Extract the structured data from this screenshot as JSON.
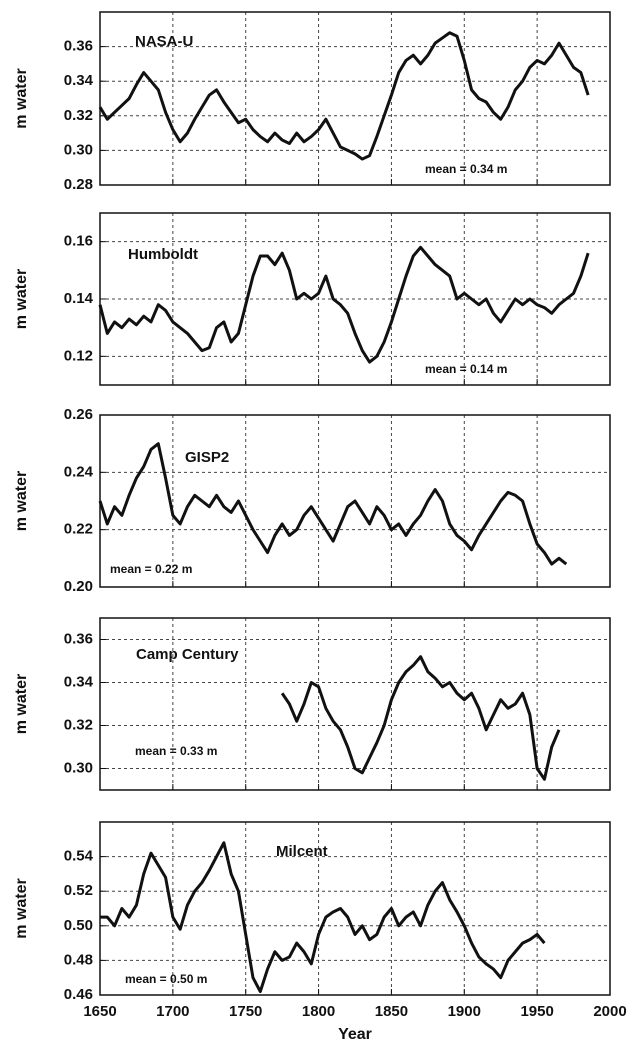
{
  "chart_data": [
    {
      "type": "line",
      "y_label": "m water",
      "annotation": "mean = 0.34 m",
      "grid": true,
      "xlim": [
        1650,
        2000
      ],
      "xticks": [
        1650,
        1700,
        1750,
        1800,
        1850,
        1900,
        1950,
        2000
      ],
      "ylim": [
        0.28,
        0.38
      ],
      "yticks": [
        0.28,
        {
          "value": 0.3,
          "label": "0.30"
        },
        0.32,
        0.34,
        0.36
      ],
      "x": [
        1650,
        1655,
        1660,
        1665,
        1670,
        1675,
        1680,
        1685,
        1690,
        1695,
        1700,
        1705,
        1710,
        1715,
        1720,
        1725,
        1730,
        1735,
        1740,
        1745,
        1750,
        1755,
        1760,
        1765,
        1770,
        1775,
        1780,
        1785,
        1790,
        1795,
        1800,
        1805,
        1810,
        1815,
        1820,
        1825,
        1830,
        1835,
        1840,
        1845,
        1850,
        1855,
        1860,
        1865,
        1870,
        1875,
        1880,
        1885,
        1890,
        1895,
        1900,
        1905,
        1910,
        1915,
        1920,
        1925,
        1930,
        1935,
        1940,
        1945,
        1950,
        1955,
        1960,
        1965,
        1970,
        1975,
        1980,
        1985
      ],
      "series": [
        {
          "name": "NASA-U",
          "color": "#111111",
          "values": [
            0.325,
            0.318,
            0.322,
            0.326,
            0.33,
            0.338,
            0.345,
            0.34,
            0.335,
            0.322,
            0.312,
            0.305,
            0.31,
            0.318,
            0.325,
            0.332,
            0.335,
            0.328,
            0.322,
            0.316,
            0.318,
            0.312,
            0.308,
            0.305,
            0.31,
            0.306,
            0.304,
            0.31,
            0.305,
            0.308,
            0.312,
            0.318,
            0.31,
            0.302,
            0.3,
            0.298,
            0.295,
            0.297,
            0.308,
            0.32,
            0.332,
            0.345,
            0.352,
            0.355,
            0.35,
            0.355,
            0.362,
            0.365,
            0.368,
            0.366,
            0.352,
            0.335,
            0.33,
            0.328,
            0.322,
            0.318,
            0.325,
            0.335,
            0.34,
            0.348,
            0.352,
            0.35,
            0.355,
            0.362,
            0.355,
            0.348,
            0.345,
            0.332
          ]
        }
      ]
    },
    {
      "type": "line",
      "y_label": "m water",
      "annotation": "mean = 0.14 m",
      "grid": true,
      "xlim": [
        1650,
        2000
      ],
      "xticks": [
        1650,
        1700,
        1750,
        1800,
        1850,
        1900,
        1950,
        2000
      ],
      "ylim": [
        0.11,
        0.17
      ],
      "yticks": [
        0.12,
        0.14,
        0.16
      ],
      "x": [
        1650,
        1655,
        1660,
        1665,
        1670,
        1675,
        1680,
        1685,
        1690,
        1695,
        1700,
        1705,
        1710,
        1715,
        1720,
        1725,
        1730,
        1735,
        1740,
        1745,
        1750,
        1755,
        1760,
        1765,
        1770,
        1775,
        1780,
        1785,
        1790,
        1795,
        1800,
        1805,
        1810,
        1815,
        1820,
        1825,
        1830,
        1835,
        1840,
        1845,
        1850,
        1855,
        1860,
        1865,
        1870,
        1875,
        1880,
        1885,
        1890,
        1895,
        1900,
        1905,
        1910,
        1915,
        1920,
        1925,
        1930,
        1935,
        1940,
        1945,
        1950,
        1955,
        1960,
        1965,
        1970,
        1975,
        1980,
        1985
      ],
      "series": [
        {
          "name": "Humboldt",
          "color": "#111111",
          "values": [
            0.138,
            0.128,
            0.132,
            0.13,
            0.133,
            0.131,
            0.134,
            0.132,
            0.138,
            0.136,
            0.132,
            0.13,
            0.128,
            0.125,
            0.122,
            0.123,
            0.13,
            0.132,
            0.125,
            0.128,
            0.138,
            0.148,
            0.155,
            0.155,
            0.152,
            0.156,
            0.15,
            0.14,
            0.142,
            0.14,
            0.142,
            0.148,
            0.14,
            0.138,
            0.135,
            0.128,
            0.122,
            0.118,
            0.12,
            0.125,
            0.132,
            0.14,
            0.148,
            0.155,
            0.158,
            0.155,
            0.152,
            0.15,
            0.148,
            0.14,
            0.142,
            0.14,
            0.138,
            0.14,
            0.135,
            0.132,
            0.136,
            0.14,
            0.138,
            0.14,
            0.138,
            0.137,
            0.135,
            0.138,
            0.14,
            0.142,
            0.148,
            0.156
          ]
        }
      ]
    },
    {
      "type": "line",
      "y_label": "m water",
      "annotation": "mean = 0.22 m",
      "grid": true,
      "xlim": [
        1650,
        2000
      ],
      "xticks": [
        1650,
        1700,
        1750,
        1800,
        1850,
        1900,
        1950,
        2000
      ],
      "ylim": [
        0.2,
        0.26
      ],
      "yticks": [
        {
          "value": 0.2,
          "label": "0.20"
        },
        0.22,
        0.24,
        0.26
      ],
      "x": [
        1650,
        1655,
        1660,
        1665,
        1670,
        1675,
        1680,
        1685,
        1690,
        1695,
        1700,
        1705,
        1710,
        1715,
        1720,
        1725,
        1730,
        1735,
        1740,
        1745,
        1750,
        1755,
        1760,
        1765,
        1770,
        1775,
        1780,
        1785,
        1790,
        1795,
        1800,
        1805,
        1810,
        1815,
        1820,
        1825,
        1830,
        1835,
        1840,
        1845,
        1850,
        1855,
        1860,
        1865,
        1870,
        1875,
        1880,
        1885,
        1890,
        1895,
        1900,
        1905,
        1910,
        1915,
        1920,
        1925,
        1930,
        1935,
        1940,
        1945,
        1950,
        1955,
        1960,
        1965,
        1970
      ],
      "series": [
        {
          "name": "GISP2",
          "color": "#111111",
          "values": [
            0.23,
            0.222,
            0.228,
            0.225,
            0.232,
            0.238,
            0.242,
            0.248,
            0.25,
            0.238,
            0.225,
            0.222,
            0.228,
            0.232,
            0.23,
            0.228,
            0.232,
            0.228,
            0.226,
            0.23,
            0.225,
            0.22,
            0.216,
            0.212,
            0.218,
            0.222,
            0.218,
            0.22,
            0.225,
            0.228,
            0.224,
            0.22,
            0.216,
            0.222,
            0.228,
            0.23,
            0.226,
            0.222,
            0.228,
            0.225,
            0.22,
            0.222,
            0.218,
            0.222,
            0.225,
            0.23,
            0.234,
            0.23,
            0.222,
            0.218,
            0.216,
            0.213,
            0.218,
            0.222,
            0.226,
            0.23,
            0.233,
            0.232,
            0.23,
            0.222,
            0.215,
            0.212,
            0.208,
            0.21,
            0.208
          ]
        }
      ]
    },
    {
      "type": "line",
      "y_label": "m water",
      "annotation": "mean = 0.33 m",
      "grid": true,
      "xlim": [
        1650,
        2000
      ],
      "xticks": [
        1650,
        1700,
        1750,
        1800,
        1850,
        1900,
        1950,
        2000
      ],
      "ylim": [
        0.29,
        0.37
      ],
      "yticks": [
        {
          "value": 0.3,
          "label": "0.30"
        },
        0.32,
        0.34,
        0.36
      ],
      "x": [
        1775,
        1780,
        1785,
        1790,
        1795,
        1800,
        1805,
        1810,
        1815,
        1820,
        1825,
        1830,
        1835,
        1840,
        1845,
        1850,
        1855,
        1860,
        1865,
        1870,
        1875,
        1880,
        1885,
        1890,
        1895,
        1900,
        1905,
        1910,
        1915,
        1920,
        1925,
        1930,
        1935,
        1940,
        1945,
        1950,
        1955,
        1960,
        1965
      ],
      "series": [
        {
          "name": "Camp Century",
          "color": "#111111",
          "values": [
            0.335,
            0.33,
            0.322,
            0.33,
            0.34,
            0.338,
            0.328,
            0.322,
            0.318,
            0.31,
            0.3,
            0.298,
            0.305,
            0.312,
            0.32,
            0.332,
            0.34,
            0.345,
            0.348,
            0.352,
            0.345,
            0.342,
            0.338,
            0.34,
            0.335,
            0.332,
            0.335,
            0.328,
            0.318,
            0.325,
            0.332,
            0.328,
            0.33,
            0.335,
            0.325,
            0.3,
            0.295,
            0.31,
            0.318
          ]
        }
      ]
    },
    {
      "type": "line",
      "y_label": "m water",
      "x_label": "Year",
      "annotation": "mean = 0.50 m",
      "grid": true,
      "xlim": [
        1650,
        2000
      ],
      "xticks": [
        1650,
        1700,
        1750,
        1800,
        1850,
        1900,
        1950,
        2000
      ],
      "ylim": [
        0.46,
        0.56
      ],
      "yticks": [
        0.46,
        0.48,
        {
          "value": 0.5,
          "label": "0.50"
        },
        0.52,
        0.54
      ],
      "x": [
        1650,
        1655,
        1660,
        1665,
        1670,
        1675,
        1680,
        1685,
        1690,
        1695,
        1700,
        1705,
        1710,
        1715,
        1720,
        1725,
        1730,
        1735,
        1740,
        1745,
        1750,
        1755,
        1760,
        1765,
        1770,
        1775,
        1780,
        1785,
        1790,
        1795,
        1800,
        1805,
        1810,
        1815,
        1820,
        1825,
        1830,
        1835,
        1840,
        1845,
        1850,
        1855,
        1860,
        1865,
        1870,
        1875,
        1880,
        1885,
        1890,
        1895,
        1900,
        1905,
        1910,
        1915,
        1920,
        1925,
        1930,
        1935,
        1940,
        1945,
        1950,
        1955
      ],
      "series": [
        {
          "name": "Milcent",
          "color": "#111111",
          "values": [
            0.505,
            0.505,
            0.5,
            0.51,
            0.505,
            0.512,
            0.53,
            0.542,
            0.535,
            0.528,
            0.505,
            0.498,
            0.512,
            0.52,
            0.525,
            0.532,
            0.54,
            0.548,
            0.53,
            0.52,
            0.495,
            0.47,
            0.462,
            0.475,
            0.485,
            0.48,
            0.482,
            0.49,
            0.485,
            0.478,
            0.495,
            0.505,
            0.508,
            0.51,
            0.505,
            0.495,
            0.5,
            0.492,
            0.495,
            0.505,
            0.51,
            0.5,
            0.505,
            0.508,
            0.5,
            0.512,
            0.52,
            0.525,
            0.515,
            0.508,
            0.5,
            0.49,
            0.482,
            0.478,
            0.475,
            0.47,
            0.48,
            0.485,
            0.49,
            0.492,
            0.495,
            0.49
          ]
        }
      ]
    }
  ]
}
